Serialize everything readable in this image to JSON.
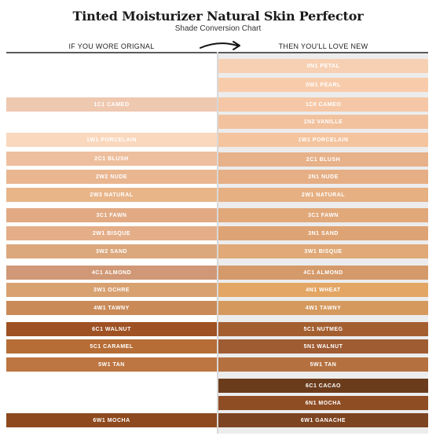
{
  "header": {
    "title": "Tinted Moisturizer Natural Skin Perfector",
    "subtitle": "Shade Conversion Chart",
    "left_heading": "IF YOU WORE ORIGNAL",
    "right_heading": "THEN YOU'LL LOVE NEW"
  },
  "original": [
    {
      "label": "1C1 CAMEO",
      "color": "#efc8b0"
    },
    {
      "label": "1W1 PORCELAIN",
      "color": "#fad8bd"
    },
    {
      "label": "2C1 BLUSH",
      "color": "#eebf9e"
    },
    {
      "label": "2W2 NUDE",
      "color": "#e9b690"
    },
    {
      "label": "2W3 NATURAL",
      "color": "#e8b589"
    },
    {
      "label": "3C1 FAWN",
      "color": "#e1aa83"
    },
    {
      "label": "2W1 BISQUE",
      "color": "#e4ae89"
    },
    {
      "label": "3W2 SAND",
      "color": "#dba77d"
    },
    {
      "label": "4C1 ALMOND",
      "color": "#d09876"
    },
    {
      "label": "3W1 OCHRE",
      "color": "#d8a170"
    },
    {
      "label": "4W1 TAWNY",
      "color": "#c98a58"
    },
    {
      "label": "6C1 WALNUT",
      "color": "#9f5224"
    },
    {
      "label": "5C1 CARAMEL",
      "color": "#b66d36"
    },
    {
      "label": "5W1 TAN",
      "color": "#bd7541"
    },
    {
      "label": "6W1 MOCHA",
      "color": "#8e4a1e"
    }
  ],
  "new": [
    {
      "label": "0N1 PETAL",
      "color": "#f7d0b3"
    },
    {
      "label": "0W1 PEARL",
      "color": "#f8ccab"
    },
    {
      "label": "1C0 CAMEO",
      "color": "#f5c7a6"
    },
    {
      "label": "1N2 VANILLE",
      "color": "#f2c29f"
    },
    {
      "label": "1W1 PORCELAIN",
      "color": "#f4c49f"
    },
    {
      "label": "2C1 BLUSH",
      "color": "#e7b189"
    },
    {
      "label": "2N1 NUDE",
      "color": "#e6ae84"
    },
    {
      "label": "2W1 NATURAL",
      "color": "#e6b083"
    },
    {
      "label": "3C1 FAWN",
      "color": "#e1a87a"
    },
    {
      "label": "3N1 SAND",
      "color": "#dea374"
    },
    {
      "label": "3W1 BISQUE",
      "color": "#e0a977"
    },
    {
      "label": "4C1 ALMOND",
      "color": "#d59a6a"
    },
    {
      "label": "4N1 WHEAT",
      "color": "#e3a665"
    },
    {
      "label": "4W1 TAWNY",
      "color": "#d5995d"
    },
    {
      "label": "5C1 NUTMEG",
      "color": "#a45f31"
    },
    {
      "label": "5N1 WALNUT",
      "color": "#9f5c33"
    },
    {
      "label": "5W1 TAN",
      "color": "#b4703f"
    },
    {
      "label": "6C1 CACAO",
      "color": "#6b3c1c"
    },
    {
      "label": "6N1 MOCHA",
      "color": "#8f4d24"
    },
    {
      "label": "6W1 GANACHE",
      "color": "#7d4422"
    }
  ]
}
